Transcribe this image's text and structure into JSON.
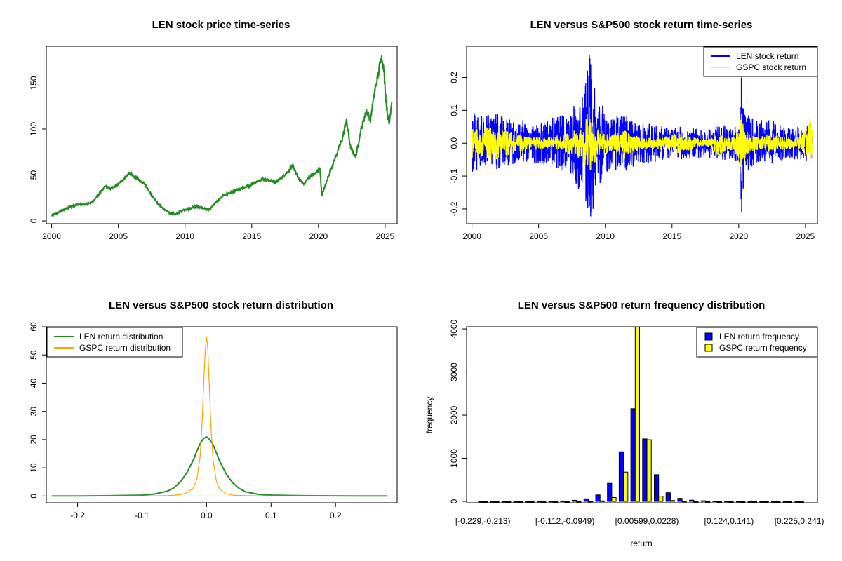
{
  "chart_data": [
    {
      "id": "price",
      "type": "line",
      "title": "LEN stock price time-series",
      "xlabel": "",
      "ylabel": "",
      "xlim": [
        1999.6,
        2025.9
      ],
      "ylim": [
        -3,
        190
      ],
      "x_ticks": [
        2000,
        2005,
        2010,
        2015,
        2020,
        2025
      ],
      "x_tick_labels": [
        "2000",
        "2005",
        "2010",
        "2015",
        "2020",
        "2025"
      ],
      "y_ticks": [
        0,
        50,
        100,
        150
      ],
      "y_tick_labels": [
        "0",
        "50",
        "100",
        "150"
      ],
      "legend": null,
      "series": [
        {
          "color": "#228B22",
          "x": [
            2000.0,
            2000.5,
            2001.0,
            2001.5,
            2002.0,
            2002.5,
            2003.0,
            2003.5,
            2004.0,
            2004.5,
            2005.0,
            2005.5,
            2005.8,
            2006.5,
            2007.0,
            2007.5,
            2008.0,
            2008.5,
            2008.9,
            2009.3,
            2009.8,
            2010.3,
            2010.8,
            2011.3,
            2011.8,
            2012.3,
            2012.8,
            2013.3,
            2013.8,
            2014.3,
            2014.8,
            2015.3,
            2015.8,
            2016.3,
            2016.8,
            2017.3,
            2017.8,
            2018.1,
            2018.5,
            2018.9,
            2019.3,
            2019.8,
            2020.1,
            2020.25,
            2020.5,
            2020.9,
            2021.3,
            2021.8,
            2022.1,
            2022.4,
            2022.8,
            2023.2,
            2023.6,
            2023.9,
            2024.2,
            2024.5,
            2024.7,
            2024.9,
            2025.1,
            2025.3,
            2025.5
          ],
          "y": [
            6,
            9,
            13,
            16,
            18,
            18,
            20,
            28,
            38,
            35,
            40,
            47,
            52,
            45,
            40,
            28,
            18,
            12,
            8,
            7,
            12,
            13,
            16,
            14,
            12,
            20,
            27,
            30,
            33,
            36,
            38,
            42,
            46,
            44,
            42,
            48,
            55,
            60,
            46,
            40,
            48,
            52,
            58,
            28,
            38,
            55,
            70,
            90,
            110,
            80,
            70,
            100,
            120,
            110,
            140,
            160,
            180,
            165,
            125,
            105,
            132
          ]
        }
      ]
    },
    {
      "id": "returns",
      "type": "line",
      "title": "LEN versus S&P500 stock return time-series",
      "xlabel": "",
      "ylabel": "",
      "xlim": [
        1999.6,
        2025.9
      ],
      "ylim": [
        -0.245,
        0.295
      ],
      "x_ticks": [
        2000,
        2005,
        2010,
        2015,
        2020,
        2025
      ],
      "x_tick_labels": [
        "2000",
        "2005",
        "2010",
        "2015",
        "2020",
        "2025"
      ],
      "y_ticks": [
        -0.2,
        -0.1,
        0.0,
        0.1,
        0.2
      ],
      "y_tick_labels": [
        "-0.2",
        "-0.1",
        "0.0",
        "0.1",
        "0.2"
      ],
      "legend": "top-right",
      "series": [
        {
          "name": "LEN stock return",
          "color": "#0000FF",
          "x": [
            2000,
            2001,
            2002,
            2003,
            2004,
            2005,
            2006,
            2007,
            2007.7,
            2008.3,
            2008.8,
            2009.2,
            2009.7,
            2010.5,
            2011.5,
            2012.5,
            2013.5,
            2014.5,
            2015.5,
            2016.5,
            2017.5,
            2018.5,
            2019.5,
            2020.0,
            2020.2,
            2020.5,
            2021.5,
            2022.5,
            2023.5,
            2024.5,
            2025.5
          ],
          "amp_up": [
            0.09,
            0.1,
            0.09,
            0.07,
            0.07,
            0.06,
            0.08,
            0.09,
            0.12,
            0.15,
            0.27,
            0.2,
            0.12,
            0.08,
            0.09,
            0.06,
            0.06,
            0.05,
            0.05,
            0.05,
            0.04,
            0.06,
            0.05,
            0.06,
            0.2,
            0.09,
            0.07,
            0.07,
            0.05,
            0.05,
            0.06
          ],
          "amp_down": [
            -0.09,
            -0.08,
            -0.08,
            -0.07,
            -0.06,
            -0.06,
            -0.07,
            -0.09,
            -0.12,
            -0.18,
            -0.23,
            -0.2,
            -0.11,
            -0.08,
            -0.09,
            -0.06,
            -0.06,
            -0.05,
            -0.05,
            -0.05,
            -0.04,
            -0.06,
            -0.05,
            -0.06,
            -0.22,
            -0.09,
            -0.06,
            -0.06,
            -0.05,
            -0.05,
            -0.06
          ]
        },
        {
          "name": "GSPC stock return",
          "color": "#FFFF00",
          "x": [
            2000,
            2001,
            2002,
            2003,
            2004,
            2005,
            2006,
            2007,
            2007.7,
            2008.3,
            2008.8,
            2009.2,
            2009.7,
            2010.5,
            2011.5,
            2012.5,
            2013.5,
            2014.5,
            2015.5,
            2016.5,
            2017.5,
            2018.5,
            2019.5,
            2020.0,
            2020.2,
            2020.5,
            2021.5,
            2022.5,
            2023.5,
            2024.5,
            2025.5
          ],
          "amp_up": [
            0.045,
            0.05,
            0.05,
            0.035,
            0.02,
            0.02,
            0.02,
            0.03,
            0.04,
            0.06,
            0.11,
            0.06,
            0.04,
            0.03,
            0.04,
            0.02,
            0.02,
            0.02,
            0.03,
            0.02,
            0.01,
            0.03,
            0.02,
            0.04,
            0.09,
            0.04,
            0.02,
            0.03,
            0.02,
            0.02,
            0.09
          ],
          "amp_down": [
            -0.045,
            -0.05,
            -0.05,
            -0.035,
            -0.02,
            -0.02,
            -0.02,
            -0.03,
            -0.04,
            -0.06,
            -0.09,
            -0.06,
            -0.04,
            -0.03,
            -0.05,
            -0.02,
            -0.02,
            -0.02,
            -0.03,
            -0.02,
            -0.01,
            -0.04,
            -0.02,
            -0.05,
            -0.12,
            -0.04,
            -0.02,
            -0.03,
            -0.02,
            -0.02,
            -0.06
          ]
        }
      ]
    },
    {
      "id": "density",
      "type": "line",
      "title": "LEN versus S&P500 stock return distribution",
      "xlabel": "",
      "ylabel": "",
      "xlim": [
        -0.2485,
        0.2955
      ],
      "ylim": [
        -2.4,
        60
      ],
      "x_ticks": [
        -0.2,
        -0.1,
        0.0,
        0.1,
        0.2
      ],
      "x_tick_labels": [
        "-0.2",
        "-0.1",
        "0.0",
        "0.1",
        "0.2"
      ],
      "y_ticks": [
        0,
        10,
        20,
        30,
        40,
        50,
        60
      ],
      "y_tick_labels": [
        "0",
        "10",
        "20",
        "30",
        "40",
        "50",
        "60"
      ],
      "legend": "top-left",
      "series": [
        {
          "name": "LEN return distribution",
          "color": "#228B22",
          "x": [
            -0.24,
            -0.2,
            -0.15,
            -0.1,
            -0.08,
            -0.06,
            -0.05,
            -0.04,
            -0.03,
            -0.02,
            -0.015,
            -0.01,
            -0.005,
            0.0,
            0.005,
            0.01,
            0.015,
            0.02,
            0.03,
            0.04,
            0.05,
            0.06,
            0.08,
            0.1,
            0.15,
            0.2,
            0.24,
            0.28
          ],
          "y": [
            0,
            0,
            0.1,
            0.3,
            0.7,
            1.8,
            3.0,
            5.2,
            8.5,
            13.0,
            16.0,
            18.5,
            20.3,
            21.0,
            20.0,
            18.2,
            15.5,
            12.5,
            8.0,
            4.8,
            2.8,
            1.5,
            0.6,
            0.3,
            0.1,
            0.05,
            0.02,
            0
          ]
        },
        {
          "name": "GSPC return distribution",
          "color": "#FFA500",
          "x": [
            -0.24,
            -0.1,
            -0.06,
            -0.04,
            -0.03,
            -0.02,
            -0.015,
            -0.01,
            -0.007,
            -0.004,
            -0.002,
            0.0,
            0.002,
            0.004,
            0.007,
            0.01,
            0.015,
            0.02,
            0.03,
            0.04,
            0.06,
            0.1,
            0.28
          ],
          "y": [
            0,
            0,
            0.1,
            0.5,
            1.2,
            3.0,
            6.0,
            14.0,
            26.0,
            42.0,
            52.0,
            56.5,
            52.0,
            40.0,
            24.0,
            13.0,
            5.5,
            2.5,
            0.8,
            0.3,
            0.1,
            0,
            0
          ]
        }
      ]
    },
    {
      "id": "histogram",
      "type": "bar",
      "title": "LEN versus S&P500 return frequency distribution",
      "xlabel": "return",
      "ylabel": "frequency",
      "ylim": [
        0,
        4050
      ],
      "y_ticks": [
        0,
        1000,
        2000,
        3000,
        4000
      ],
      "y_tick_labels": [
        "0",
        "1000",
        "2000",
        "3000",
        "4000"
      ],
      "x_tick_labels": [
        "[-0.229,-0.213)",
        "[-0.112,-0.0949)",
        "[0.00599,0.0228)",
        "[0.124,0.141)",
        "[0.225,0.241)"
      ],
      "x_tick_category_index": [
        0,
        7,
        14,
        21,
        27
      ],
      "legend": "top-right",
      "n_bins": 28,
      "series": [
        {
          "name": "LEN return frequency",
          "color": "#0000FF",
          "values": [
            1,
            1,
            1,
            2,
            1,
            3,
            5,
            10,
            26,
            60,
            150,
            420,
            1150,
            2150,
            1450,
            620,
            200,
            70,
            30,
            15,
            8,
            5,
            4,
            2,
            2,
            1,
            1,
            1
          ]
        },
        {
          "name": "GSPC return frequency",
          "color": "#FFFF00",
          "values": [
            0,
            0,
            0,
            0,
            0,
            0,
            0,
            0,
            1,
            3,
            12,
            90,
            680,
            4500,
            1430,
            120,
            20,
            5,
            2,
            1,
            0,
            0,
            0,
            0,
            0,
            0,
            0,
            0
          ]
        }
      ]
    }
  ]
}
